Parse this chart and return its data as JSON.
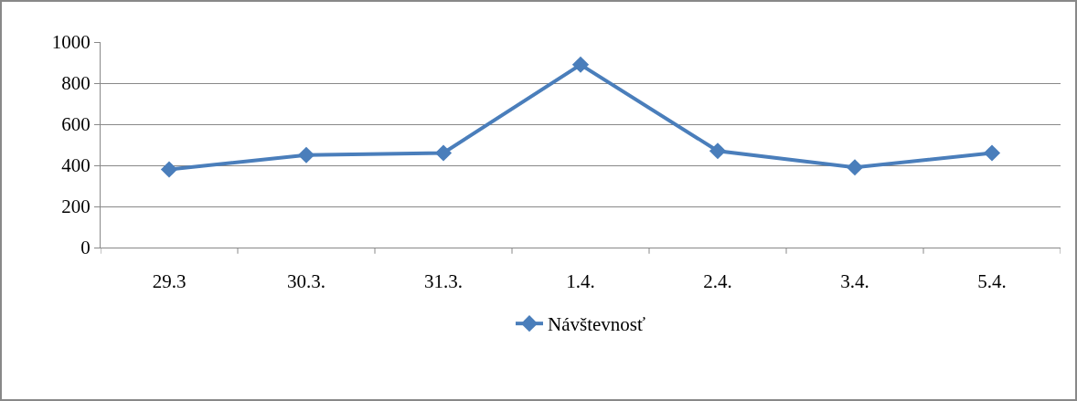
{
  "chart_data": {
    "type": "line",
    "categories": [
      "29.3",
      "30.3.",
      "31.3.",
      "1.4.",
      "2.4.",
      "3.4.",
      "5.4."
    ],
    "series": [
      {
        "name": "Návštevnosť",
        "color": "#4a7ebb",
        "values": [
          380,
          450,
          460,
          890,
          470,
          390,
          460
        ]
      }
    ],
    "ylim": [
      0,
      1000
    ],
    "yticks": [
      0,
      200,
      400,
      600,
      800,
      1000
    ],
    "grid": "y",
    "legend": "bottom",
    "marker": "diamond",
    "line_style": "solid"
  }
}
